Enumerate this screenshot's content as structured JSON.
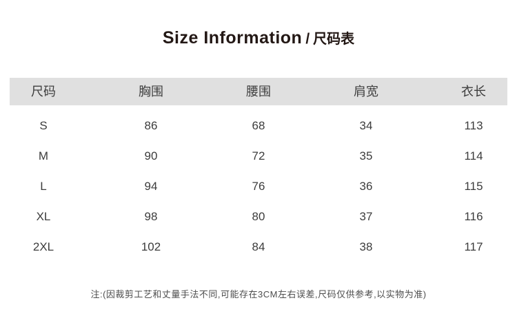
{
  "title": {
    "en": "Size Information",
    "sep": "/",
    "zh": "尺码表"
  },
  "table": {
    "columns": [
      "尺码",
      "胸围",
      "腰围",
      "肩宽",
      "衣长"
    ],
    "rows": [
      [
        "S",
        "86",
        "68",
        "34",
        "113"
      ],
      [
        "M",
        "90",
        "72",
        "35",
        "114"
      ],
      [
        "L",
        "94",
        "76",
        "36",
        "115"
      ],
      [
        "XL",
        "98",
        "80",
        "37",
        "116"
      ],
      [
        "2XL",
        "102",
        "84",
        "38",
        "117"
      ]
    ]
  },
  "note": {
    "text": "注:(因裁剪工艺和丈量手法不同,可能存在3CM左右误差,尺码仅供参考,以实物为准)"
  },
  "colors": {
    "header_background": "#e0e0e0",
    "title_text": "#231815",
    "body_text": "#3c3c3c",
    "note_text": "#4d4d4d",
    "page_background": "#ffffff"
  }
}
